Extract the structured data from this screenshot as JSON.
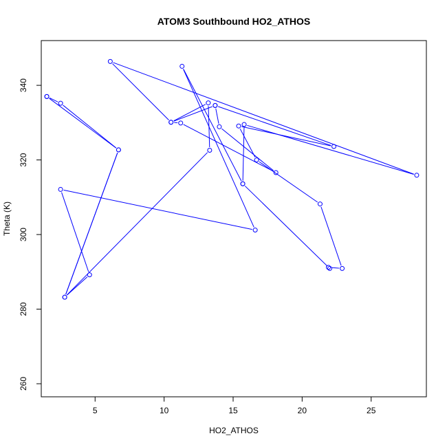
{
  "chart_data": {
    "type": "line",
    "title": "ATOM3 Southbound HO2_ATHOS",
    "xlabel": "HO2_ATHOS",
    "ylabel": "Theta (K)",
    "xlim": [
      1.1,
      29.0
    ],
    "ylim": [
      256.5,
      352.0
    ],
    "x_ticks": [
      5,
      10,
      15,
      20,
      25
    ],
    "y_ticks": [
      260,
      280,
      300,
      320,
      340
    ],
    "grid": false,
    "legend": "none",
    "line_color": "#0000ff",
    "marker": "open-circle",
    "series": [
      {
        "points": [
          {
            "x": 1.5,
            "y": 337
          },
          {
            "x": 2.5,
            "y": 335.2
          },
          {
            "x": 6.7,
            "y": 322.7
          },
          {
            "x": 2.8,
            "y": 283.2
          },
          {
            "x": 13.3,
            "y": 322.6
          },
          {
            "x": 13.2,
            "y": 335.3
          },
          {
            "x": 10.5,
            "y": 330.1
          },
          {
            "x": 6.1,
            "y": 346.4
          },
          {
            "x": 28.3,
            "y": 315.9
          },
          {
            "x": 15.8,
            "y": 329.5
          },
          {
            "x": 15.7,
            "y": 313.6
          },
          {
            "x": 11.3,
            "y": 345.1
          },
          {
            "x": 16.6,
            "y": 301.2
          },
          {
            "x": 2.5,
            "y": 312.1
          },
          {
            "x": 4.6,
            "y": 289.2
          },
          {
            "x": 2.8,
            "y": 283.2
          },
          {
            "x": 6.7,
            "y": 322.7
          },
          {
            "x": 1.5,
            "y": 337
          }
        ]
      },
      {
        "points": [
          {
            "x": 13.7,
            "y": 334.6
          },
          {
            "x": 14.0,
            "y": 328.9
          },
          {
            "x": 18.1,
            "y": 316.6
          },
          {
            "x": 11.2,
            "y": 329.9
          },
          {
            "x": 10.5,
            "y": 330.1
          },
          {
            "x": 13.7,
            "y": 334.6
          },
          {
            "x": 22.3,
            "y": 323.6
          },
          {
            "x": 15.4,
            "y": 329.1
          },
          {
            "x": 16.7,
            "y": 320.0
          },
          {
            "x": 21.3,
            "y": 308.2
          },
          {
            "x": 22.9,
            "y": 290.9
          },
          {
            "x": 21.9,
            "y": 291.2
          },
          {
            "x": 22.0,
            "y": 290.9
          },
          {
            "x": 15.7,
            "y": 313.6
          }
        ]
      }
    ]
  }
}
